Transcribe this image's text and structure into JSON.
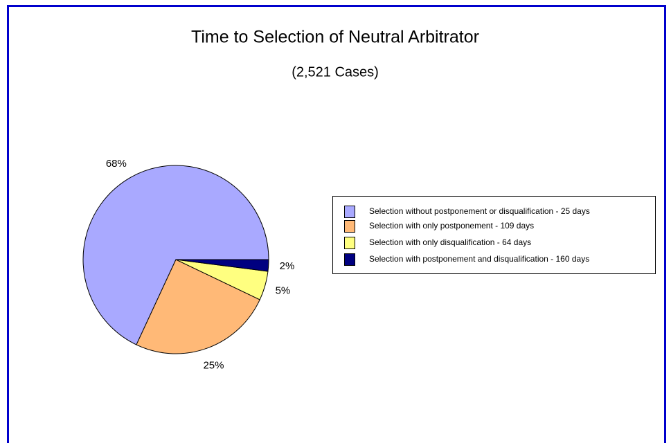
{
  "chart_data": {
    "type": "pie",
    "title": "Time to Selection of Neutral Arbitrator",
    "subtitle": "(2,521 Cases)",
    "categories": [
      "Selection without postponement or disqualification - 25 days",
      "Selection with only postponement - 109 days",
      "Selection with only disqualification - 64 days",
      "Selection with postponement and disqualification - 160 days"
    ],
    "values": [
      68,
      25,
      5,
      2
    ],
    "value_labels": [
      "68%",
      "25%",
      "5%",
      "2%"
    ],
    "colors": [
      "#a9a9ff",
      "#ffb977",
      "#ffff80",
      "#000080"
    ],
    "legend": "right"
  }
}
